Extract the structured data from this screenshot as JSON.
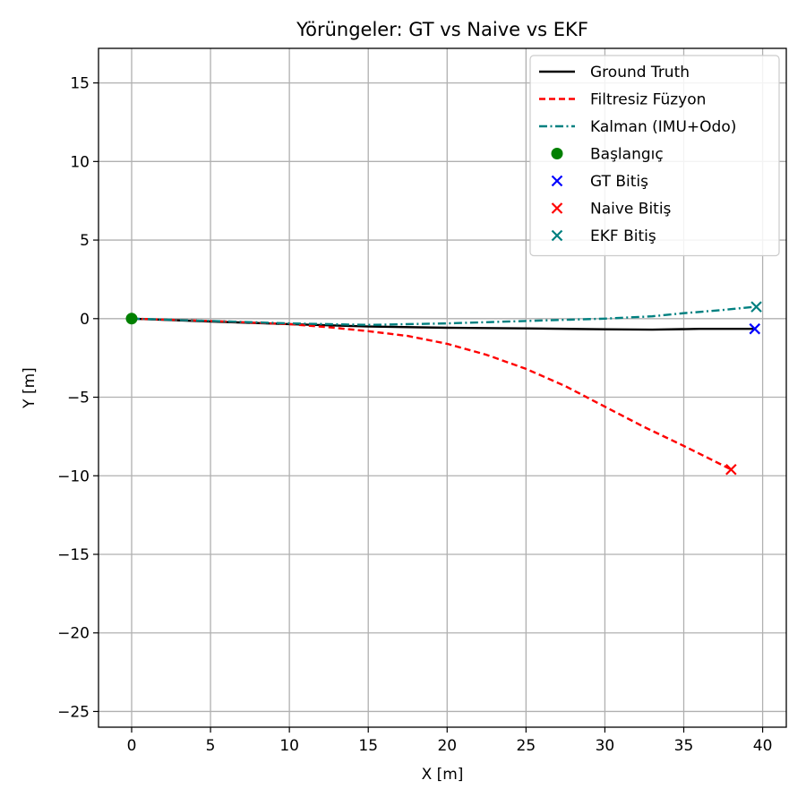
{
  "chart_data": {
    "type": "line",
    "title": "Yörüngeler: GT vs Naive vs EKF",
    "xlabel": "X [m]",
    "ylabel": "Y [m]",
    "xlim": [
      -2.1,
      41.5
    ],
    "ylim": [
      -26,
      17.2
    ],
    "xticks": [
      0,
      5,
      10,
      15,
      20,
      25,
      30,
      35,
      40
    ],
    "yticks": [
      -25,
      -20,
      -15,
      -10,
      -5,
      0,
      5,
      10,
      15
    ],
    "xtick_labels": [
      "0",
      "5",
      "10",
      "15",
      "20",
      "25",
      "30",
      "35",
      "40"
    ],
    "ytick_labels": [
      "−25",
      "−20",
      "−15",
      "−10",
      "−5",
      "0",
      "5",
      "10",
      "15"
    ],
    "grid": true,
    "legend_position": "top-right",
    "series": [
      {
        "name": "Ground Truth",
        "kind": "line",
        "style": "solid",
        "color": "#000000",
        "points": [
          [
            0,
            0
          ],
          [
            5,
            -0.18
          ],
          [
            10,
            -0.35
          ],
          [
            15,
            -0.5
          ],
          [
            20,
            -0.58
          ],
          [
            25,
            -0.62
          ],
          [
            30,
            -0.68
          ],
          [
            33,
            -0.7
          ],
          [
            36,
            -0.65
          ],
          [
            39.5,
            -0.65
          ]
        ]
      },
      {
        "name": "Filtresiz Füzyon",
        "kind": "line",
        "style": "dashed",
        "color": "#ff0000",
        "points": [
          [
            0,
            0
          ],
          [
            5,
            -0.15
          ],
          [
            10,
            -0.35
          ],
          [
            12.5,
            -0.55
          ],
          [
            15,
            -0.8
          ],
          [
            17.5,
            -1.1
          ],
          [
            20,
            -1.6
          ],
          [
            22.5,
            -2.3
          ],
          [
            25,
            -3.2
          ],
          [
            27.5,
            -4.3
          ],
          [
            30,
            -5.6
          ],
          [
            32.5,
            -6.9
          ],
          [
            35,
            -8.1
          ],
          [
            38,
            -9.6
          ]
        ]
      },
      {
        "name": "Kalman (IMU+Odo)",
        "kind": "line",
        "style": "dashdot",
        "color": "#008080",
        "points": [
          [
            0,
            0
          ],
          [
            5,
            -0.15
          ],
          [
            10,
            -0.3
          ],
          [
            15,
            -0.4
          ],
          [
            20,
            -0.3
          ],
          [
            25,
            -0.15
          ],
          [
            30,
            0.0
          ],
          [
            33,
            0.15
          ],
          [
            35,
            0.35
          ],
          [
            37.5,
            0.55
          ],
          [
            39.5,
            0.75
          ]
        ]
      },
      {
        "name": "Başlangıç",
        "kind": "scatter",
        "marker": "circle",
        "color": "#008000",
        "points": [
          [
            0,
            0
          ]
        ]
      },
      {
        "name": "GT Bitiş",
        "kind": "scatter",
        "marker": "x",
        "color": "#0000ff",
        "points": [
          [
            39.5,
            -0.65
          ]
        ]
      },
      {
        "name": "Naive Bitiş",
        "kind": "scatter",
        "marker": "x",
        "color": "#ff0000",
        "points": [
          [
            38,
            -9.6
          ]
        ]
      },
      {
        "name": "EKF Bitiş",
        "kind": "scatter",
        "marker": "x",
        "color": "#008080",
        "points": [
          [
            39.6,
            0.75
          ]
        ]
      }
    ]
  }
}
